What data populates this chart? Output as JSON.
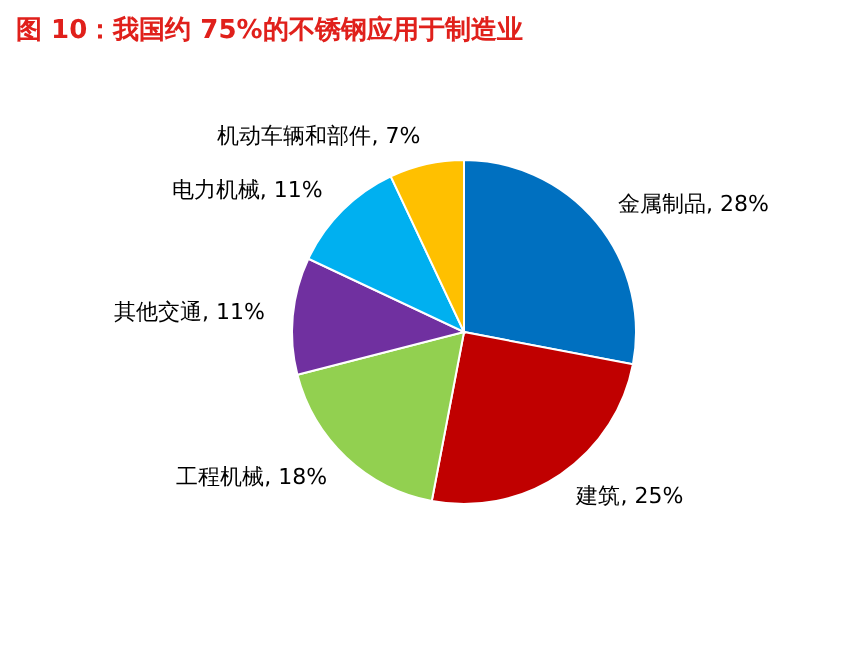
{
  "chart_data": {
    "type": "pie",
    "title": "图 10：我国约 75%的不锈钢应用于制造业",
    "categories": [
      "金属制品",
      "建筑",
      "工程机械",
      "其他交通",
      "电力机械",
      "机动车辆和部件"
    ],
    "values": [
      28,
      25,
      18,
      11,
      11,
      7
    ],
    "value_labels": [
      "28%",
      "25%",
      "18%",
      "11%",
      "11%",
      "7%"
    ],
    "colors": [
      "#0070c0",
      "#c00000",
      "#92d050",
      "#7030a0",
      "#00b0f0",
      "#ffc000"
    ]
  }
}
